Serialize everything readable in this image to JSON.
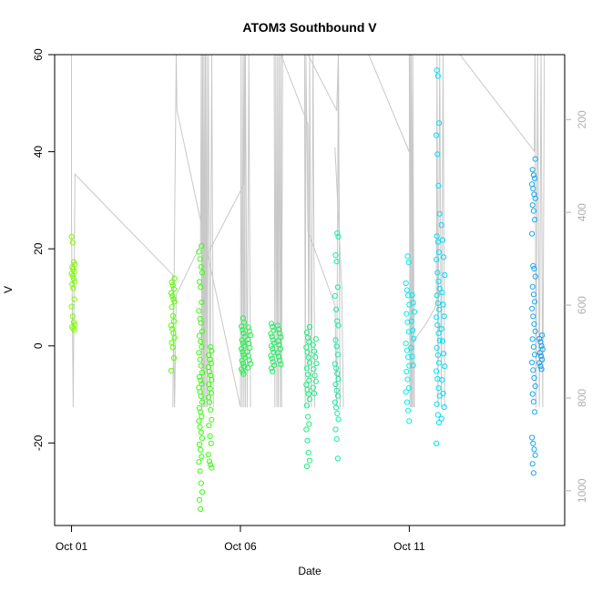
{
  "chart_data": {
    "type": "scatter",
    "title": "ATOM3 Southbound V",
    "xlabel": "Date",
    "ylabel": "V",
    "x_unit": "days",
    "x_range": [
      0.0,
      14.6
    ],
    "xlim": [
      -0.5,
      14.6
    ],
    "ylim": [
      -37,
      60
    ],
    "x_ticks": [
      {
        "value": 0.0,
        "label": "Oct 01"
      },
      {
        "value": 5.0,
        "label": "Oct 06"
      },
      {
        "value": 10.0,
        "label": "Oct 11"
      }
    ],
    "y_ticks": [
      -20,
      0,
      20,
      40,
      60
    ],
    "y2_ticks": [
      200,
      400,
      600,
      800,
      1000
    ],
    "y2lim": [
      60,
      1075
    ],
    "y2_inverted": true,
    "grid": false,
    "legend": "none",
    "trace_color": "#c8c8c8",
    "points": [
      {
        "d": 0.05,
        "c": "#7cfc00",
        "v": [
          22.5,
          21.3,
          17.3,
          16.8,
          16.2,
          15.8,
          15.3,
          14.9,
          14.4,
          13.8,
          13.2,
          12.7,
          11.9,
          9.6,
          8.1,
          6.1,
          4.9,
          4.4,
          3.9,
          3.6,
          3.2
        ]
      },
      {
        "d": 3.0,
        "c": "#5afc00",
        "v": [
          13.9,
          13.1,
          12.5,
          11.7,
          10.9,
          10.3,
          9.6,
          9.1,
          8.0,
          6.2,
          5.1,
          4.2,
          3.5,
          2.6,
          1.7,
          0.7,
          -0.3,
          -2.5,
          -5.1
        ]
      },
      {
        "d": 3.82,
        "c": "#3cfa10",
        "v": [
          20.6,
          19.4,
          17.9,
          16.3,
          15.1,
          13.2,
          12.1,
          9.0,
          7.2,
          5.6,
          4.7,
          3.0,
          2.1,
          0.9,
          -0.2,
          -1.4,
          -2.8,
          -4.1,
          -5.5,
          -6.4,
          -7.1,
          -7.8,
          -8.6,
          -9.5,
          -10.4,
          -11.6,
          -12.8,
          -13.6,
          -14.5,
          -15.5,
          -16.7,
          -17.8,
          -19.0,
          -20.3,
          -21.4,
          -22.8,
          -23.9,
          -25.8,
          -28.3,
          -30.1,
          -31.7,
          -33.6
        ]
      },
      {
        "d": 4.1,
        "c": "#3cfa10",
        "v": [
          -0.2,
          -1.0,
          -1.9,
          -2.8,
          -3.6,
          -4.4,
          -5.3,
          -6.1,
          -7.0,
          -7.9,
          -8.8,
          -9.7,
          -10.6,
          -11.6,
          -13.2,
          -15.2,
          -16.4,
          -18.6,
          -20.1,
          -22.4,
          -23.8,
          -24.5,
          -25.1
        ]
      },
      {
        "d": 5.08,
        "c": "#28f050",
        "v": [
          5.7,
          4.8,
          4.0,
          3.3,
          2.6,
          1.9,
          1.2,
          0.6,
          0.0,
          -0.6,
          -1.2,
          -1.8,
          -2.4,
          -3.0,
          -3.6,
          -4.2,
          -4.8,
          -5.3,
          -5.8
        ]
      },
      {
        "d": 5.25,
        "c": "#28f050",
        "v": [
          3.8,
          3.0,
          2.2,
          1.3,
          0.5,
          -0.4,
          -1.2,
          -2.0,
          -2.9,
          -3.7,
          -4.5
        ]
      },
      {
        "d": 5.95,
        "c": "#20f060",
        "v": [
          4.6,
          3.9,
          3.2,
          2.5,
          1.9,
          1.2,
          0.6,
          0.0,
          -0.6,
          -1.3,
          -2.0,
          -2.6,
          -3.3,
          -4.0,
          -4.6,
          -5.3
        ]
      },
      {
        "d": 6.15,
        "c": "#20f060",
        "v": [
          4.2,
          3.4,
          2.6,
          1.8,
          1.0,
          0.2,
          -0.6,
          -1.4,
          -2.2,
          -3.0,
          -3.8
        ]
      },
      {
        "d": 7.0,
        "c": "#18f080",
        "v": [
          3.9,
          2.8,
          1.7,
          0.8,
          -0.3,
          -1.3,
          -2.4,
          -3.5,
          -4.6,
          -5.9,
          -7.1,
          -8.0,
          -9.0,
          -9.9,
          -11.0,
          -12.3,
          -14.6,
          -16.1,
          -17.2,
          -19.5,
          -22.0,
          -23.6,
          -24.8
        ]
      },
      {
        "d": 7.2,
        "c": "#18f080",
        "v": [
          1.4,
          0.2,
          -1.1,
          -2.3,
          -3.6,
          -4.8,
          -6.1,
          -7.3,
          -8.6,
          -9.8
        ]
      },
      {
        "d": 7.85,
        "c": "#10f0a0",
        "v": [
          23.2,
          22.5,
          18.7,
          17.4,
          12.1,
          10.3,
          7.5,
          5.1,
          4.2,
          1.2,
          -0.1,
          -1.8,
          -3.7,
          -4.6,
          -5.7,
          -6.8,
          -7.9,
          -9.2,
          -10.3,
          -11.6,
          -12.7,
          -13.9,
          -15.1,
          -17.2,
          -19.2,
          -23.2
        ]
      },
      {
        "d": 9.95,
        "c": "#00f0e8",
        "v": [
          18.5,
          17.2,
          12.9,
          11.5,
          10.4,
          8.5,
          6.6,
          4.9,
          2.9,
          0.5,
          -0.9,
          -2.3,
          -4.1,
          -5.3,
          -6.9,
          -8.7,
          -9.5,
          -11.6,
          -13.3,
          -15.5
        ]
      },
      {
        "d": 10.1,
        "c": "#00e8f0",
        "v": [
          10.5,
          8.9,
          7.0,
          5.1,
          3.2,
          1.5,
          -0.4,
          -2.2,
          -4.0
        ]
      },
      {
        "d": 10.85,
        "c": "#00e0f8",
        "v": [
          56.8,
          55.6,
          45.9,
          43.4,
          39.5,
          33.0,
          27.2,
          22.6,
          21.4,
          19.3,
          17.8,
          15.1,
          13.3,
          11.8,
          10.4,
          8.8,
          7.5,
          5.9,
          4.3,
          2.6,
          1.1,
          -0.4,
          -1.9,
          -3.5,
          -5.2,
          -6.8,
          -8.7,
          -10.3,
          -12.0,
          -14.2,
          -15.8,
          -20.1
        ]
      },
      {
        "d": 11.0,
        "c": "#00d8f8",
        "v": [
          24.9,
          21.8,
          18.3,
          14.6,
          11.0,
          8.5,
          6.1,
          3.5,
          1.0,
          -1.6,
          -4.2,
          -7.0,
          -9.8,
          -12.6,
          -15.0
        ]
      },
      {
        "d": 13.68,
        "c": "#18a8f0",
        "v": [
          38.5,
          36.3,
          35.2,
          34.5,
          33.3,
          32.4,
          31.2,
          30.4,
          29.0,
          27.8,
          26.0,
          23.1,
          16.5,
          15.9,
          14.3,
          12.2,
          10.6,
          9.1,
          7.7,
          6.1,
          4.5,
          3.0,
          1.4,
          -0.2,
          -1.8,
          -3.4,
          -5.0,
          -6.6,
          -8.3,
          -9.9,
          -11.5,
          -13.6,
          -18.9,
          -20.1,
          -21.3,
          -22.5,
          -24.3,
          -26.2
        ]
      },
      {
        "d": 13.9,
        "c": "#18a0f0",
        "v": [
          2.2,
          1.5,
          0.8,
          0.0,
          -0.7,
          -1.4,
          -2.1,
          -2.8,
          -3.5,
          -4.2,
          -4.8
        ]
      }
    ],
    "depth_trace": {
      "segments": [
        [
          [
            0.0,
            60
          ],
          [
            0.0,
            60
          ],
          [
            0.0,
            420
          ],
          [
            0.05,
            820
          ],
          [
            0.1,
            318
          ],
          [
            3.0,
            535
          ],
          [
            3.05,
            820
          ],
          [
            3.1,
            578
          ],
          [
            3.82,
            470
          ],
          [
            3.84,
            60
          ],
          [
            3.86,
            820
          ],
          [
            3.88,
            60
          ],
          [
            3.9,
            820
          ],
          [
            3.92,
            60
          ],
          [
            3.94,
            820
          ],
          [
            3.96,
            60
          ],
          [
            3.98,
            820
          ],
          [
            4.0,
            60
          ],
          [
            4.02,
            820
          ],
          [
            4.05,
            60
          ],
          [
            4.1,
            820
          ],
          [
            4.15,
            60
          ],
          [
            4.2,
            820
          ]
        ],
        [
          [
            3.0,
            820
          ],
          [
            3.1,
            60
          ],
          [
            3.12,
            180
          ],
          [
            5.0,
            820
          ],
          [
            5.02,
            60
          ],
          [
            5.05,
            820
          ],
          [
            5.08,
            60
          ],
          [
            5.1,
            820
          ],
          [
            5.15,
            60
          ],
          [
            5.2,
            820
          ],
          [
            5.25,
            60
          ],
          [
            5.3,
            820
          ]
        ],
        [
          [
            3.9,
            820
          ],
          [
            3.92,
            505
          ],
          [
            5.1,
            340
          ],
          [
            5.12,
            60
          ],
          [
            5.15,
            820
          ]
        ],
        [
          [
            6.0,
            60
          ],
          [
            6.02,
            820
          ],
          [
            6.05,
            60
          ],
          [
            6.08,
            820
          ],
          [
            6.1,
            60
          ],
          [
            6.12,
            820
          ],
          [
            6.15,
            60
          ],
          [
            6.18,
            820
          ],
          [
            6.2,
            60
          ],
          [
            6.22,
            820
          ],
          [
            6.25,
            60
          ]
        ],
        [
          [
            6.2,
            60
          ],
          [
            7.0,
            210
          ],
          [
            7.02,
            820
          ],
          [
            7.05,
            60
          ],
          [
            7.1,
            820
          ],
          [
            7.15,
            60
          ],
          [
            7.2,
            820
          ]
        ],
        [
          [
            6.9,
            60
          ],
          [
            6.92,
            820
          ],
          [
            6.94,
            60
          ],
          [
            7.0,
            440
          ],
          [
            7.8,
            600
          ],
          [
            7.85,
            820
          ],
          [
            7.9,
            60
          ],
          [
            7.95,
            820
          ]
        ],
        [
          [
            7.0,
            60
          ],
          [
            7.85,
            180
          ],
          [
            7.9,
            60
          ],
          [
            7.95,
            820
          ]
        ],
        [
          [
            7.8,
            260
          ],
          [
            8.0,
            560
          ],
          [
            8.05,
            820
          ]
        ],
        [
          [
            8.8,
            60
          ],
          [
            10.0,
            270
          ],
          [
            10.02,
            60
          ],
          [
            10.05,
            820
          ],
          [
            10.1,
            60
          ],
          [
            10.15,
            820
          ]
        ],
        [
          [
            10.0,
            60
          ],
          [
            10.02,
            820
          ],
          [
            10.05,
            60
          ],
          [
            10.08,
            820
          ],
          [
            10.1,
            60
          ],
          [
            10.12,
            820
          ]
        ],
        [
          [
            10.0,
            690
          ],
          [
            10.5,
            640
          ],
          [
            10.8,
            600
          ],
          [
            10.82,
            60
          ],
          [
            10.85,
            820
          ],
          [
            10.9,
            60
          ],
          [
            10.95,
            820
          ],
          [
            11.0,
            60
          ],
          [
            11.05,
            820
          ]
        ],
        [
          [
            11.5,
            60
          ],
          [
            13.7,
            268
          ],
          [
            13.72,
            60
          ],
          [
            13.75,
            820
          ],
          [
            13.8,
            60
          ],
          [
            13.85,
            820
          ],
          [
            13.9,
            60
          ],
          [
            13.95,
            820
          ],
          [
            14.0,
            60
          ]
        ]
      ]
    }
  }
}
